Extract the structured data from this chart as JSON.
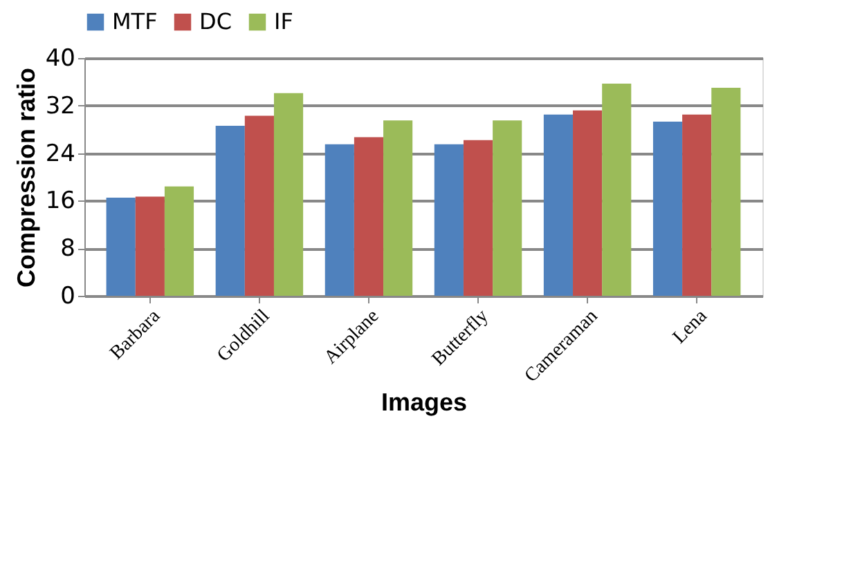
{
  "chart_data": {
    "type": "bar",
    "xlabel": "Images",
    "ylabel": "Compression ratio",
    "categories": [
      "Barbara",
      "Goldhill",
      "Airplane",
      "Butterfly",
      "Cameraman",
      "Lena"
    ],
    "series": [
      {
        "name": "MTF",
        "color": "#4f81bd",
        "values": [
          16.5,
          28.6,
          25.5,
          25.5,
          30.5,
          29.3
        ]
      },
      {
        "name": "DC",
        "color": "#c0504d",
        "values": [
          16.7,
          30.3,
          26.7,
          26.2,
          31.2,
          30.5
        ]
      },
      {
        "name": "IF",
        "color": "#9bbb59",
        "values": [
          18.4,
          34.1,
          29.5,
          29.5,
          35.7,
          35.0
        ]
      }
    ],
    "ylim": [
      0,
      40
    ],
    "yticks": [
      0,
      8,
      16,
      24,
      32,
      40
    ],
    "grid": "y",
    "legend": "top"
  }
}
